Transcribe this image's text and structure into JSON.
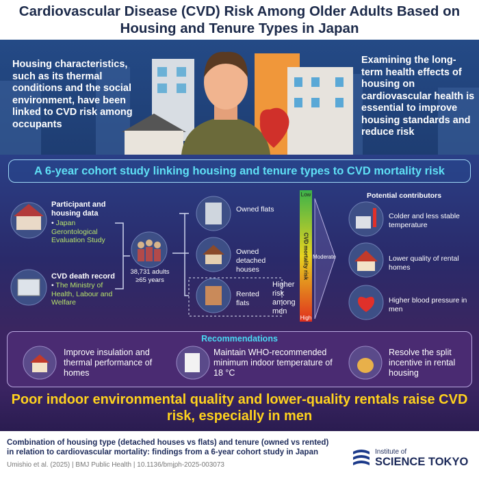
{
  "header": {
    "title": "Cardiovascular Disease (CVD) Risk Among Older Adults Based on Housing and Tenure Types in Japan"
  },
  "intro": {
    "left": "Housing characteristics, such as its thermal conditions and the social environment, have been linked to CVD risk among occupants",
    "right": "Examining the long-term health effects of housing on cardiovascular health is essential to improve housing standards and reduce risk"
  },
  "study": {
    "title": "A 6-year cohort study linking housing and tenure types to CVD mortality risk",
    "sources": [
      {
        "label": "Participant and housing data",
        "detail": "Japan Gerontological Evaluation Study"
      },
      {
        "label": "CVD death record",
        "detail": "The Ministry of Health, Labour and Welfare"
      }
    ],
    "participants": "38,731 adults ≥65 years",
    "housing": [
      "Owned flats",
      "Owned detached houses",
      "Rented flats"
    ],
    "higher_risk": "Higher risk among men",
    "scale": {
      "label": "CVD mortality risk",
      "low": "Low",
      "moderate": "Moderate",
      "high": "High"
    },
    "contributors_title": "Potential contributors",
    "contributors": [
      "Colder and less stable temperature",
      "Lower quality of rental homes",
      "Higher blood pressure in men"
    ]
  },
  "recommendations": {
    "title": "Recommendations",
    "items": [
      "Improve insulation and thermal performance of homes",
      "Maintain WHO-recommended minimum indoor temperature of 18 °C",
      "Resolve the split incentive in rental housing"
    ]
  },
  "conclusion": "Poor indoor environmental quality and lower-quality rentals raise CVD risk, especially in men",
  "footer": {
    "citation": "Combination of housing type (detached houses vs flats) and tenure (owned vs rented) in relation to cardiovascular mortality: findings from a 6-year cohort study in Japan",
    "reference": "Umishio et al. (2025) | BMJ Public Health | 10.1136/bmjph-2025-003073",
    "logo_small": "Institute of",
    "logo_large": "SCIENCE TOKYO"
  }
}
